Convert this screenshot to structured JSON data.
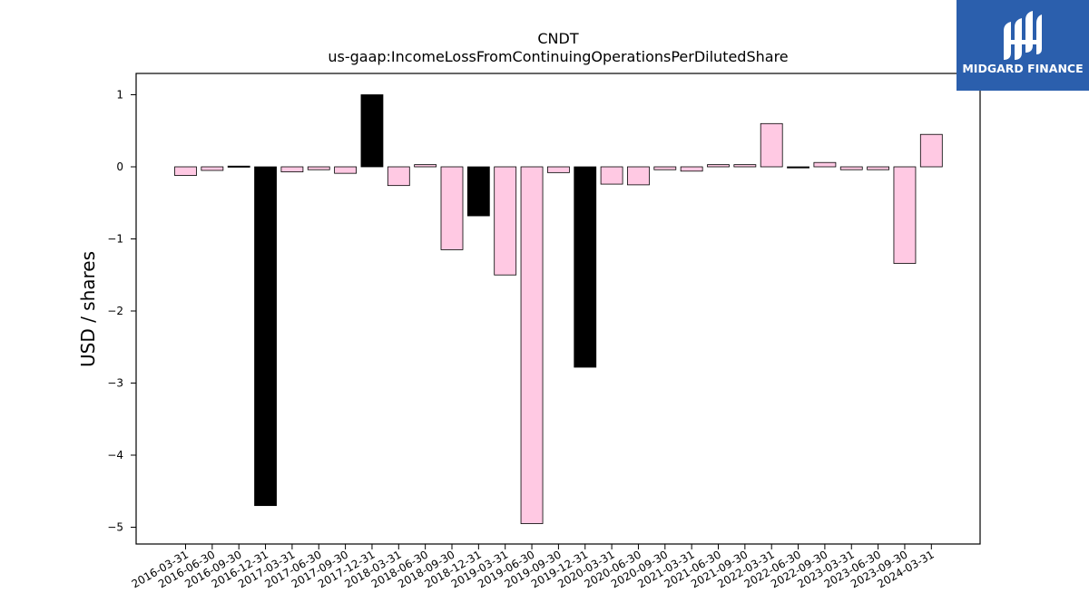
{
  "logo": {
    "text": "MIDGARD FINANCE",
    "background": "#2b5fad"
  },
  "chart_data": {
    "type": "bar",
    "title": "CNDT",
    "subtitle": "us-gaap:IncomeLossFromContinuingOperationsPerDilutedShare",
    "xlabel": "",
    "ylabel": "USD / shares",
    "ylim": [
      -5.25,
      1.3
    ],
    "yticks": [
      1,
      0,
      -1,
      -2,
      -3,
      -4,
      -5
    ],
    "ytick_labels": [
      "1",
      "0",
      "−1",
      "−2",
      "−3",
      "−4",
      "−5"
    ],
    "grid": false,
    "colors": {
      "quarterly": "#ffc9e3",
      "annual": "#000000",
      "edge": "#000000"
    },
    "categories": [
      "2016-03-31",
      "2016-06-30",
      "2016-09-30",
      "2016-12-31",
      "2017-03-31",
      "2017-06-30",
      "2017-09-30",
      "2017-12-31",
      "2018-03-31",
      "2018-06-30",
      "2018-09-30",
      "2018-12-31",
      "2019-03-31",
      "2019-06-30",
      "2019-09-30",
      "2019-12-31",
      "2020-03-31",
      "2020-06-30",
      "2020-09-30",
      "2021-03-31",
      "2021-06-30",
      "2021-09-30",
      "2022-03-31",
      "2022-06-30",
      "2022-09-30",
      "2023-03-31",
      "2023-06-30",
      "2023-09-30",
      "2024-03-31"
    ],
    "values": [
      -0.12,
      -0.05,
      0.01,
      -4.7,
      -0.07,
      -0.04,
      -0.09,
      1.0,
      -0.26,
      0.03,
      -1.15,
      -0.68,
      -1.5,
      -4.95,
      -0.08,
      -2.78,
      -0.24,
      -0.25,
      -0.04,
      -0.06,
      0.03,
      0.03,
      0.6,
      -0.01,
      0.06,
      -0.04,
      -0.04,
      -1.34,
      0.45
    ],
    "bar_kind": [
      "q",
      "q",
      "a",
      "a",
      "q",
      "q",
      "q",
      "a",
      "q",
      "q",
      "q",
      "a",
      "q",
      "q",
      "q",
      "a",
      "q",
      "q",
      "q",
      "q",
      "q",
      "q",
      "q",
      "a",
      "q",
      "q",
      "q",
      "q",
      "q"
    ]
  }
}
